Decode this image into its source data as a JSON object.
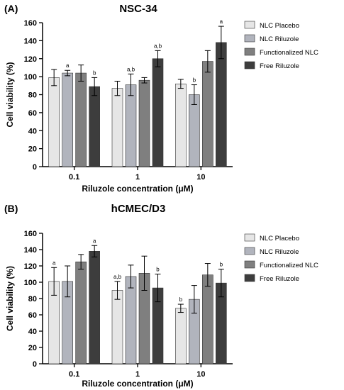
{
  "colors": {
    "series": [
      "#e6e6e6",
      "#b1b4bd",
      "#7f7f7f",
      "#3d3d3d"
    ],
    "outline": "#333333",
    "axis": "#000000"
  },
  "chart_data": [
    {
      "type": "bar",
      "panel_label": "(A)",
      "title": "NSC-34",
      "xlabel": "Riluzole concentration (μM)",
      "ylabel": "Cell viability (%)",
      "ylim": [
        0,
        160
      ],
      "yticks": [
        0,
        20,
        40,
        60,
        80,
        100,
        120,
        140,
        160
      ],
      "categories": [
        "0.1",
        "1",
        "10"
      ],
      "legend_position": "right",
      "series": [
        {
          "name": "NLC Placebo",
          "values": [
            99,
            87,
            92
          ],
          "errors": [
            9,
            8,
            5
          ],
          "annotations": [
            "",
            "",
            ""
          ]
        },
        {
          "name": "NLC Riluzole",
          "values": [
            104,
            91,
            80
          ],
          "errors": [
            3,
            12,
            11
          ],
          "annotations": [
            "a",
            "a,b",
            "b"
          ]
        },
        {
          "name": "Functionalized NLC",
          "values": [
            104,
            96,
            117
          ],
          "errors": [
            9,
            3,
            12
          ],
          "annotations": [
            "",
            "",
            ""
          ]
        },
        {
          "name": "Free Riluzole",
          "values": [
            89,
            120,
            138
          ],
          "errors": [
            10,
            9,
            18
          ],
          "annotations": [
            "b",
            "a,b",
            "a"
          ]
        }
      ]
    },
    {
      "type": "bar",
      "panel_label": "(B)",
      "title": "hCMEC/D3",
      "xlabel": "Riluzole concentration (μM)",
      "ylabel": "Cell viability (%)",
      "ylim": [
        0,
        160
      ],
      "yticks": [
        0,
        20,
        40,
        60,
        80,
        100,
        120,
        140,
        160
      ],
      "categories": [
        "0.1",
        "1",
        "10"
      ],
      "legend_position": "right",
      "series": [
        {
          "name": "NLC Placebo",
          "values": [
            101,
            90,
            68
          ],
          "errors": [
            17,
            11,
            5
          ],
          "annotations": [
            "a",
            "a,b",
            "b"
          ]
        },
        {
          "name": "NLC Riluzole",
          "values": [
            101,
            107,
            79
          ],
          "errors": [
            19,
            14,
            17
          ],
          "annotations": [
            "",
            "",
            ""
          ]
        },
        {
          "name": "Functionalized NLC",
          "values": [
            125,
            111,
            109
          ],
          "errors": [
            9,
            21,
            14
          ],
          "annotations": [
            "",
            "",
            ""
          ]
        },
        {
          "name": "Free Riluzole",
          "values": [
            138,
            93,
            99
          ],
          "errors": [
            7,
            17,
            17
          ],
          "annotations": [
            "a",
            "b",
            "b"
          ]
        }
      ]
    }
  ]
}
